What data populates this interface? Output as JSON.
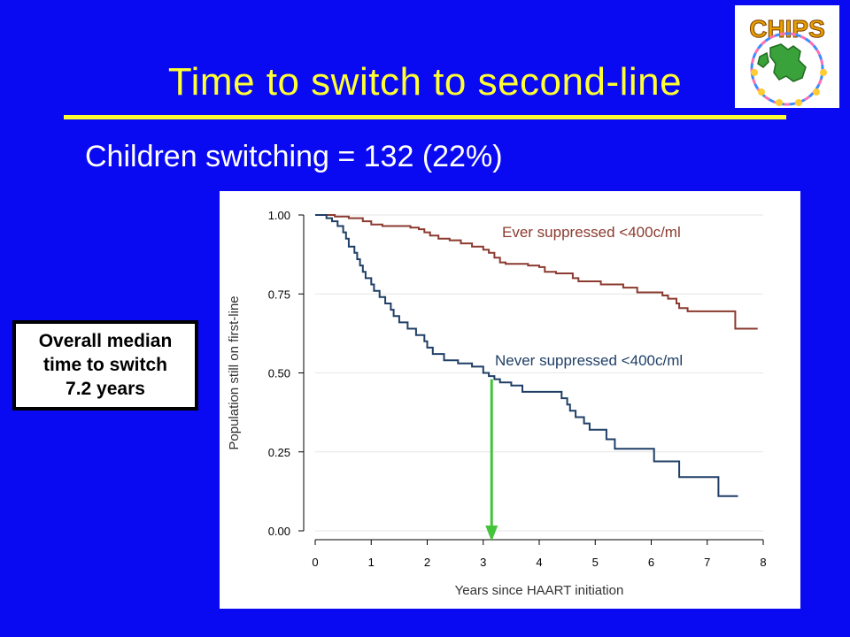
{
  "slide": {
    "title": "Time to switch to second-line",
    "subtitle": "Children switching = 132 (22%)",
    "median_box": {
      "line1": "Overall median",
      "line2": "time to switch",
      "line3": "7.2 years"
    },
    "logo_text": "CHIPS"
  },
  "colors": {
    "background": "#0a0af2",
    "title": "#ffff33",
    "ever_series": "#8b3a2f",
    "never_series": "#1f3f66",
    "arrow": "#44c43a"
  },
  "chart_data": {
    "type": "line",
    "step": true,
    "xlabel": "Years since HAART initiation",
    "ylabel": "Population still on first-line",
    "xlim": [
      0,
      8
    ],
    "ylim": [
      0,
      1
    ],
    "x_ticks": [
      "0",
      "1",
      "2",
      "3",
      "4",
      "5",
      "6",
      "7",
      "8"
    ],
    "y_ticks": [
      "0.00",
      "0.25",
      "0.50",
      "0.75",
      "1.00"
    ],
    "grid": "horizontal",
    "series": [
      {
        "name": "Ever suppressed <400c/ml",
        "color": "#8b3a2f",
        "points": [
          [
            0,
            1.0
          ],
          [
            0.35,
            1.0
          ],
          [
            0.35,
            0.995
          ],
          [
            0.6,
            0.995
          ],
          [
            0.6,
            0.99
          ],
          [
            0.85,
            0.99
          ],
          [
            0.85,
            0.98
          ],
          [
            1.0,
            0.98
          ],
          [
            1.0,
            0.97
          ],
          [
            1.2,
            0.97
          ],
          [
            1.2,
            0.965
          ],
          [
            1.7,
            0.965
          ],
          [
            1.7,
            0.96
          ],
          [
            1.85,
            0.96
          ],
          [
            1.85,
            0.955
          ],
          [
            1.95,
            0.955
          ],
          [
            1.95,
            0.945
          ],
          [
            2.05,
            0.945
          ],
          [
            2.05,
            0.935
          ],
          [
            2.2,
            0.935
          ],
          [
            2.2,
            0.925
          ],
          [
            2.4,
            0.925
          ],
          [
            2.4,
            0.92
          ],
          [
            2.6,
            0.92
          ],
          [
            2.6,
            0.91
          ],
          [
            2.8,
            0.91
          ],
          [
            2.8,
            0.9
          ],
          [
            3.0,
            0.9
          ],
          [
            3.0,
            0.89
          ],
          [
            3.1,
            0.89
          ],
          [
            3.1,
            0.88
          ],
          [
            3.2,
            0.88
          ],
          [
            3.2,
            0.865
          ],
          [
            3.3,
            0.865
          ],
          [
            3.3,
            0.85
          ],
          [
            3.4,
            0.85
          ],
          [
            3.4,
            0.845
          ],
          [
            3.8,
            0.845
          ],
          [
            3.8,
            0.84
          ],
          [
            4.0,
            0.84
          ],
          [
            4.0,
            0.835
          ],
          [
            4.1,
            0.835
          ],
          [
            4.1,
            0.82
          ],
          [
            4.3,
            0.82
          ],
          [
            4.3,
            0.815
          ],
          [
            4.6,
            0.815
          ],
          [
            4.6,
            0.8
          ],
          [
            4.7,
            0.8
          ],
          [
            4.7,
            0.79
          ],
          [
            5.1,
            0.79
          ],
          [
            5.1,
            0.78
          ],
          [
            5.5,
            0.78
          ],
          [
            5.5,
            0.77
          ],
          [
            5.75,
            0.77
          ],
          [
            5.75,
            0.755
          ],
          [
            6.2,
            0.755
          ],
          [
            6.2,
            0.745
          ],
          [
            6.3,
            0.745
          ],
          [
            6.3,
            0.735
          ],
          [
            6.45,
            0.735
          ],
          [
            6.45,
            0.72
          ],
          [
            6.5,
            0.72
          ],
          [
            6.5,
            0.705
          ],
          [
            6.65,
            0.705
          ],
          [
            6.65,
            0.695
          ],
          [
            7.5,
            0.695
          ],
          [
            7.5,
            0.64
          ],
          [
            7.9,
            0.64
          ]
        ]
      },
      {
        "name": "Never suppressed <400c/ml",
        "color": "#1f3f66",
        "points": [
          [
            0,
            1.0
          ],
          [
            0.2,
            1.0
          ],
          [
            0.2,
            0.99
          ],
          [
            0.3,
            0.99
          ],
          [
            0.3,
            0.98
          ],
          [
            0.4,
            0.98
          ],
          [
            0.4,
            0.965
          ],
          [
            0.5,
            0.965
          ],
          [
            0.5,
            0.945
          ],
          [
            0.55,
            0.945
          ],
          [
            0.55,
            0.925
          ],
          [
            0.6,
            0.925
          ],
          [
            0.6,
            0.9
          ],
          [
            0.7,
            0.9
          ],
          [
            0.7,
            0.88
          ],
          [
            0.75,
            0.88
          ],
          [
            0.75,
            0.86
          ],
          [
            0.8,
            0.86
          ],
          [
            0.8,
            0.84
          ],
          [
            0.85,
            0.84
          ],
          [
            0.85,
            0.82
          ],
          [
            0.9,
            0.82
          ],
          [
            0.9,
            0.8
          ],
          [
            1.0,
            0.8
          ],
          [
            1.0,
            0.78
          ],
          [
            1.05,
            0.78
          ],
          [
            1.05,
            0.76
          ],
          [
            1.15,
            0.76
          ],
          [
            1.15,
            0.74
          ],
          [
            1.25,
            0.74
          ],
          [
            1.25,
            0.72
          ],
          [
            1.35,
            0.72
          ],
          [
            1.35,
            0.7
          ],
          [
            1.4,
            0.7
          ],
          [
            1.4,
            0.68
          ],
          [
            1.5,
            0.68
          ],
          [
            1.5,
            0.66
          ],
          [
            1.65,
            0.66
          ],
          [
            1.65,
            0.64
          ],
          [
            1.8,
            0.64
          ],
          [
            1.8,
            0.62
          ],
          [
            1.95,
            0.62
          ],
          [
            1.95,
            0.6
          ],
          [
            2.0,
            0.6
          ],
          [
            2.0,
            0.58
          ],
          [
            2.1,
            0.58
          ],
          [
            2.1,
            0.56
          ],
          [
            2.3,
            0.56
          ],
          [
            2.3,
            0.54
          ],
          [
            2.55,
            0.54
          ],
          [
            2.55,
            0.53
          ],
          [
            2.8,
            0.53
          ],
          [
            2.8,
            0.52
          ],
          [
            3.0,
            0.52
          ],
          [
            3.0,
            0.5
          ],
          [
            3.1,
            0.5
          ],
          [
            3.1,
            0.49
          ],
          [
            3.2,
            0.49
          ],
          [
            3.2,
            0.48
          ],
          [
            3.3,
            0.48
          ],
          [
            3.3,
            0.47
          ],
          [
            3.5,
            0.47
          ],
          [
            3.5,
            0.46
          ],
          [
            3.7,
            0.46
          ],
          [
            3.7,
            0.44
          ],
          [
            4.4,
            0.44
          ],
          [
            4.4,
            0.42
          ],
          [
            4.5,
            0.42
          ],
          [
            4.5,
            0.4
          ],
          [
            4.55,
            0.4
          ],
          [
            4.55,
            0.38
          ],
          [
            4.65,
            0.38
          ],
          [
            4.65,
            0.36
          ],
          [
            4.8,
            0.36
          ],
          [
            4.8,
            0.34
          ],
          [
            4.9,
            0.34
          ],
          [
            4.9,
            0.32
          ],
          [
            5.2,
            0.32
          ],
          [
            5.2,
            0.29
          ],
          [
            5.35,
            0.29
          ],
          [
            5.35,
            0.26
          ],
          [
            6.05,
            0.26
          ],
          [
            6.05,
            0.22
          ],
          [
            6.5,
            0.22
          ],
          [
            6.5,
            0.17
          ],
          [
            7.2,
            0.17
          ],
          [
            7.2,
            0.11
          ],
          [
            7.55,
            0.11
          ]
        ]
      }
    ],
    "annotations": [
      {
        "type": "arrow",
        "x": 3.15,
        "y_from": 0.48,
        "y_to": 0.0,
        "color": "#44c43a"
      }
    ]
  }
}
